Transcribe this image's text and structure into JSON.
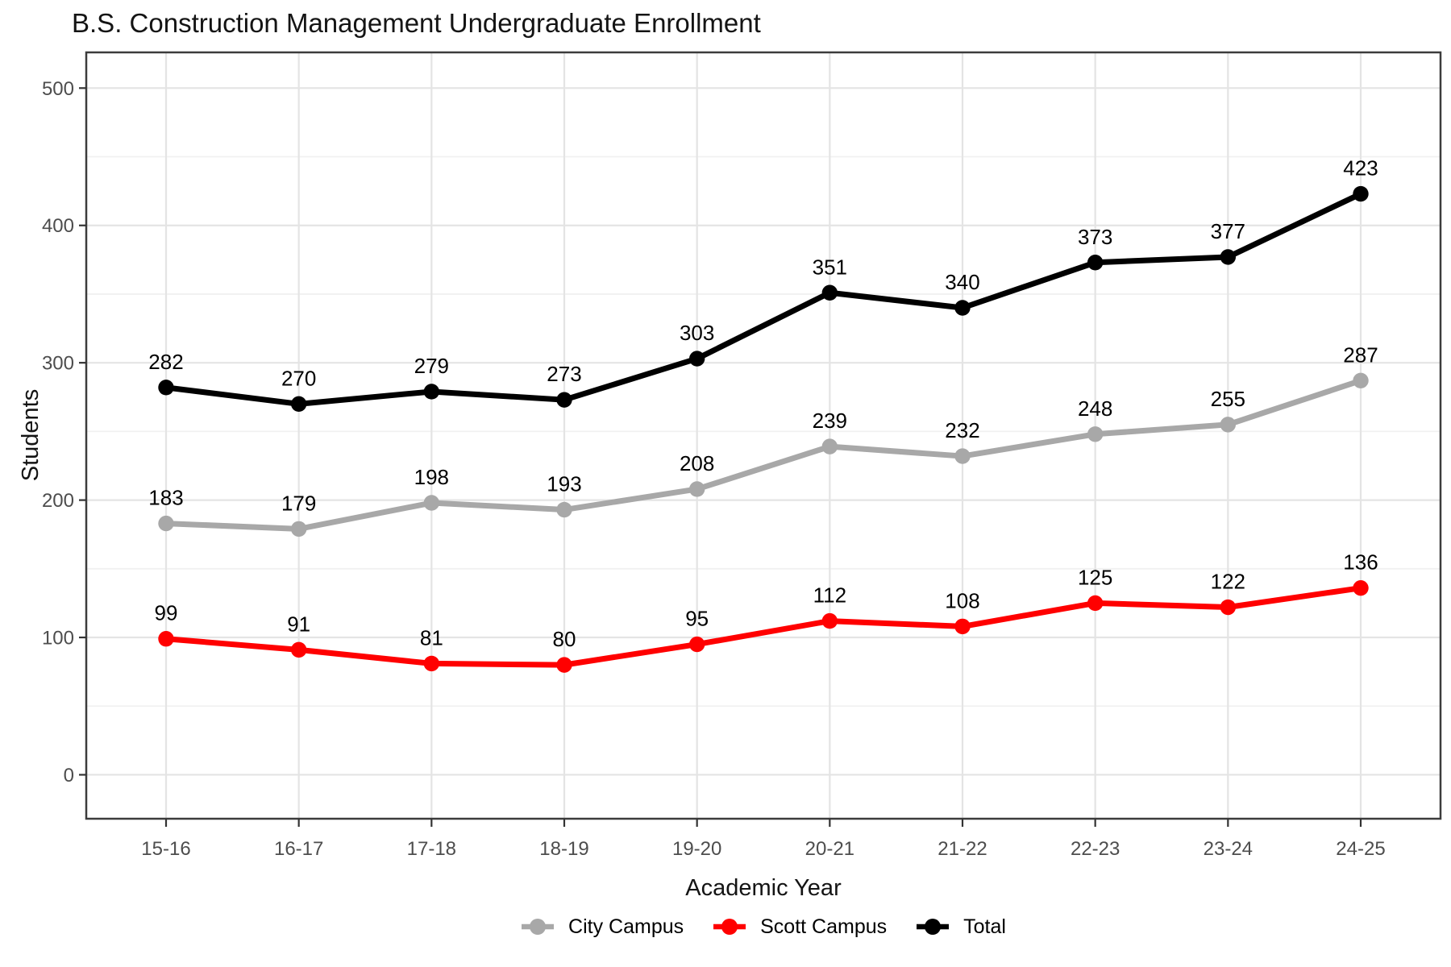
{
  "chart_data": {
    "type": "line",
    "title": "B.S. Construction Management Undergraduate Enrollment",
    "xlabel": "Academic Year",
    "ylabel": "Students",
    "categories": [
      "15-16",
      "16-17",
      "17-18",
      "18-19",
      "19-20",
      "20-21",
      "21-22",
      "22-23",
      "23-24",
      "24-25"
    ],
    "series": [
      {
        "name": "City Campus",
        "color": "#A8A8A8",
        "values": [
          183,
          179,
          198,
          193,
          208,
          239,
          232,
          248,
          255,
          287
        ]
      },
      {
        "name": "Scott Campus",
        "color": "#FF0000",
        "values": [
          99,
          91,
          81,
          80,
          95,
          112,
          108,
          125,
          122,
          136
        ]
      },
      {
        "name": "Total",
        "color": "#000000",
        "values": [
          282,
          270,
          279,
          273,
          303,
          351,
          340,
          373,
          377,
          423
        ]
      }
    ],
    "y_ticks": [
      0,
      100,
      200,
      300,
      400,
      500
    ],
    "y_minor_ticks": [
      50,
      150,
      250,
      350,
      450
    ],
    "ylim": [
      -32,
      526
    ],
    "grid": true,
    "point_labels": "above",
    "legend_position": "bottom"
  },
  "colors": {
    "grid_major": "#E4E4E4",
    "grid_minor": "#F1F1F1",
    "panel_border": "#3C3C3C",
    "tick_mark": "#333333",
    "axis_text": "#4D4D4D",
    "data_label": "#000000",
    "title_text": "#141414"
  }
}
